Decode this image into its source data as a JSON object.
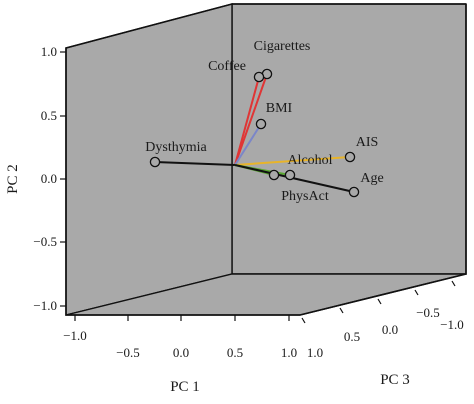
{
  "chart_data": {
    "type": "scatter",
    "projection": "3d-biplot",
    "axes": {
      "pc1": {
        "label": "PC 1",
        "range": [
          -1.0,
          1.0
        ],
        "ticks": [
          "−1.0",
          "−0.5",
          "0.0",
          "0.5",
          "1.0"
        ]
      },
      "pc2": {
        "label": "PC 2",
        "range": [
          -1.0,
          1.0
        ],
        "ticks": [
          "1.0",
          "0.5",
          "0.0",
          "−0.5",
          "−1.0"
        ]
      },
      "pc3": {
        "label": "PC 3",
        "range": [
          -1.0,
          1.0
        ],
        "ticks": [
          "1.0",
          "0.5",
          "0.0",
          "−0.5",
          "−1.0"
        ]
      }
    },
    "series": [
      {
        "name": "Cigarettes",
        "pc2": 0.83,
        "color": "#e03535"
      },
      {
        "name": "Coffee",
        "pc2": 0.81,
        "color": "#e03535"
      },
      {
        "name": "BMI",
        "pc2": 0.43,
        "color": "#7b86c8"
      },
      {
        "name": "AIS",
        "pc2": 0.18,
        "color": "#e8b42a"
      },
      {
        "name": "Dysthymia",
        "pc2": 0.14,
        "color": "#111111"
      },
      {
        "name": "Alcohol",
        "pc2": 0.05,
        "color": "#5aa832"
      },
      {
        "name": "PhysAct",
        "pc2": 0.04,
        "color": "#5aa832"
      },
      {
        "name": "Age",
        "pc2": -0.09,
        "color": "#111111"
      }
    ],
    "origin_pc2": 0.13,
    "panel_color": "#a9a9a9"
  }
}
